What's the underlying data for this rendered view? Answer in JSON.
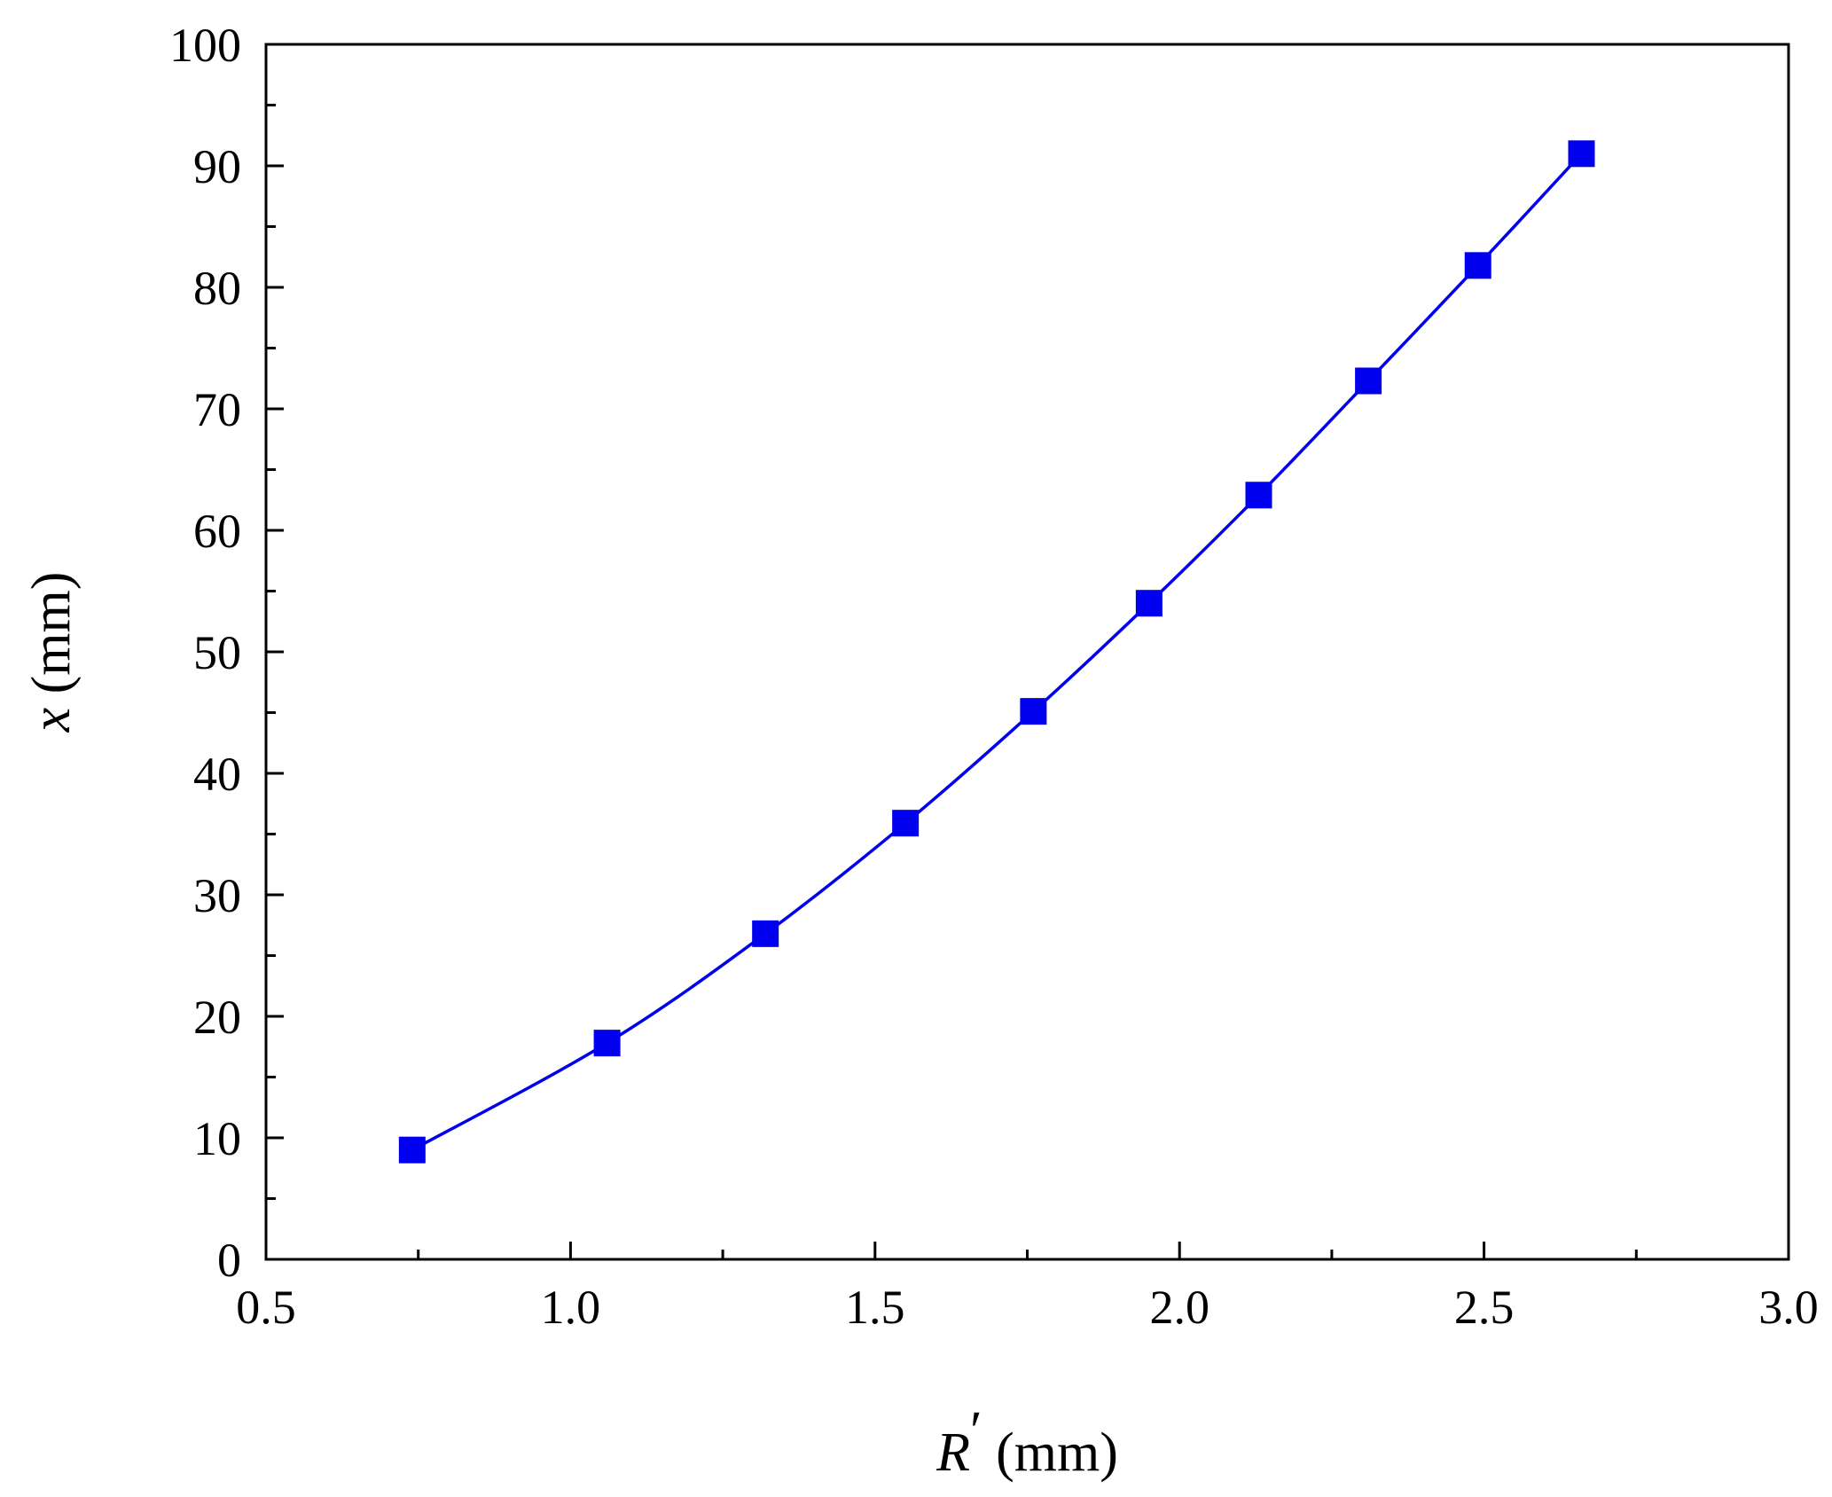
{
  "chart_data": {
    "type": "line",
    "title": "",
    "xlabel": {
      "var": "R",
      "prime": "′",
      "unit": " (mm)"
    },
    "ylabel": {
      "var": "x",
      "unit": " (mm)"
    },
    "xlim": [
      0.5,
      3.0
    ],
    "ylim": [
      0,
      100
    ],
    "x_major_ticks": [
      0.5,
      1.0,
      1.5,
      2.0,
      2.5,
      3.0
    ],
    "x_tick_labels": [
      "0.5",
      "1.0",
      "1.5",
      "2.0",
      "2.5",
      "3.0"
    ],
    "x_minor_ticks": [
      0.75,
      1.25,
      1.75,
      2.25,
      2.75
    ],
    "y_major_ticks": [
      0,
      10,
      20,
      30,
      40,
      50,
      60,
      70,
      80,
      90,
      100
    ],
    "y_tick_labels": [
      "0",
      "10",
      "20",
      "30",
      "40",
      "50",
      "60",
      "70",
      "80",
      "90",
      "100"
    ],
    "y_minor_ticks": [
      5,
      15,
      25,
      35,
      45,
      55,
      65,
      75,
      85,
      95
    ],
    "grid": false,
    "legend": "none",
    "series": [
      {
        "color": "#0000ee",
        "marker": "square",
        "x": [
          0.74,
          1.06,
          1.32,
          1.55,
          1.76,
          1.95,
          2.13,
          2.31,
          2.49,
          2.66
        ],
        "y": [
          9,
          17.8,
          26.8,
          35.9,
          45.1,
          54,
          62.9,
          72.3,
          81.8,
          91
        ]
      }
    ]
  }
}
